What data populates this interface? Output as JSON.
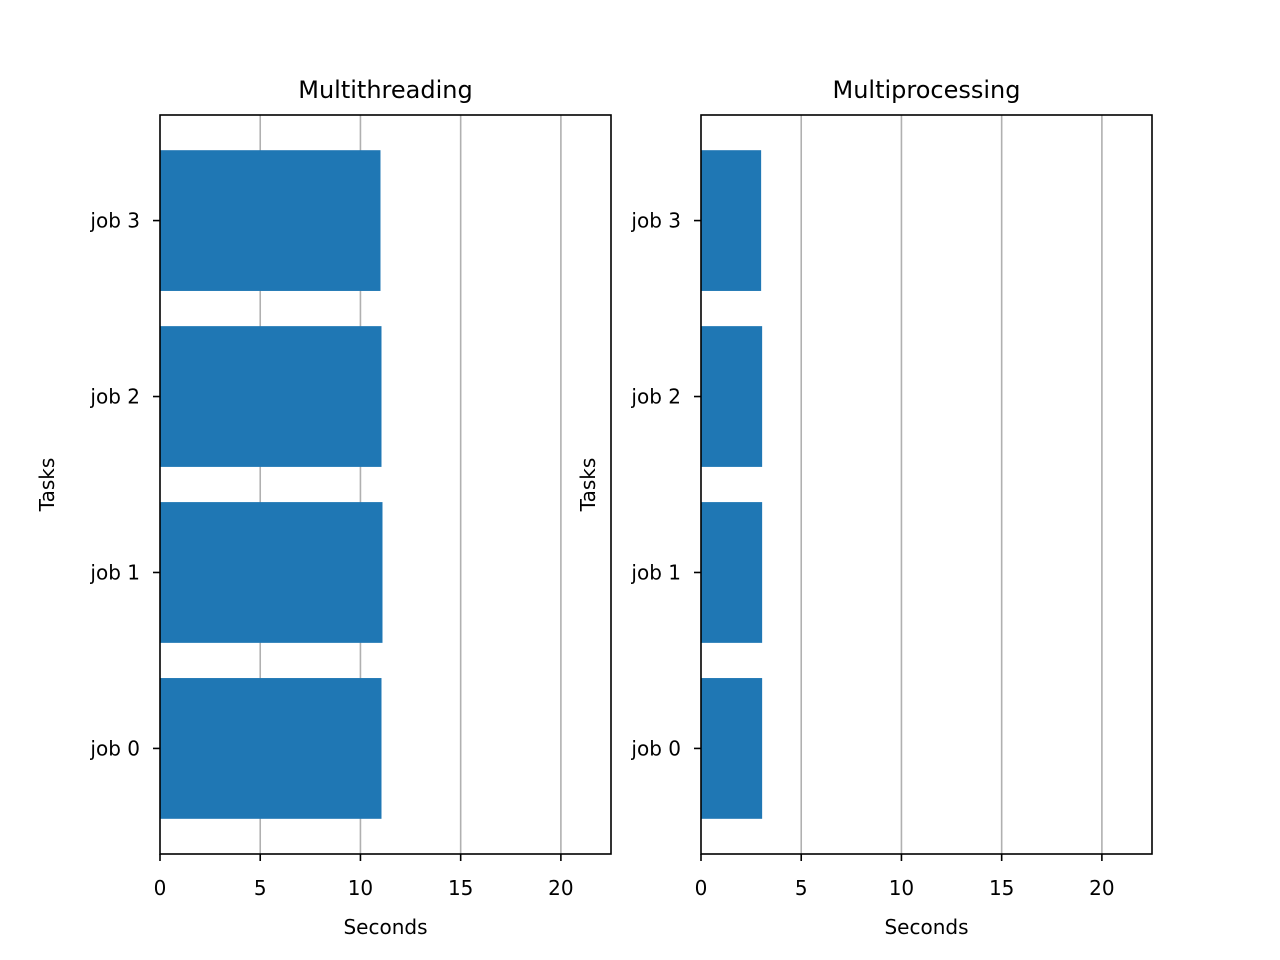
{
  "chart_data": [
    {
      "type": "bar",
      "orientation": "horizontal",
      "title": "Multithreading",
      "xlabel": "Seconds",
      "ylabel": "Tasks",
      "categories": [
        "job 0",
        "job 1",
        "job 2",
        "job 3"
      ],
      "values": [
        11.05,
        11.1,
        11.05,
        11.0
      ],
      "xlim": [
        0,
        22.5
      ],
      "xticks": [
        0,
        5,
        10,
        15,
        20
      ],
      "grid": "x",
      "bar_color": "#1f77b4"
    },
    {
      "type": "bar",
      "orientation": "horizontal",
      "title": "Multiprocessing",
      "xlabel": "Seconds",
      "ylabel": "Tasks",
      "categories": [
        "job 0",
        "job 1",
        "job 2",
        "job 3"
      ],
      "values": [
        3.05,
        3.05,
        3.05,
        3.0
      ],
      "xlim": [
        0,
        22.5
      ],
      "xticks": [
        0,
        5,
        10,
        15,
        20
      ],
      "grid": "x",
      "bar_color": "#1f77b4"
    }
  ]
}
